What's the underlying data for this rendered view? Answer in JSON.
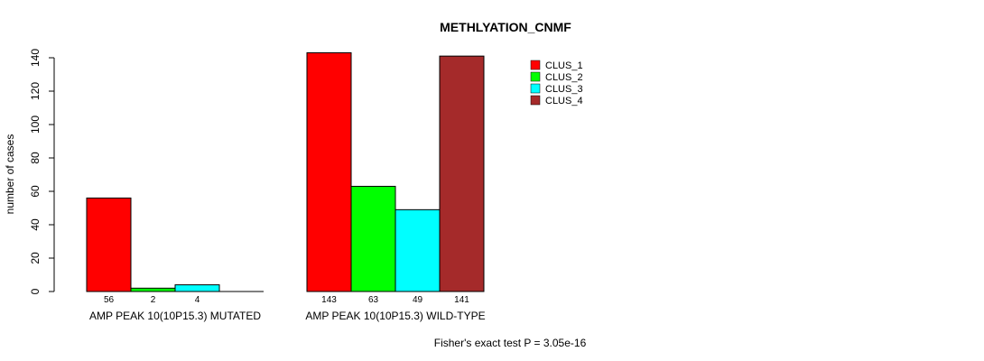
{
  "chart_data": {
    "type": "bar",
    "title": "METHLYATION_CNMF",
    "ylabel": "number of cases",
    "xlabel": "",
    "ylim": [
      0,
      140
    ],
    "yticks": [
      0,
      20,
      40,
      60,
      80,
      100,
      120,
      140
    ],
    "groups": [
      "AMP PEAK 10(10P15.3) MUTATED",
      "AMP PEAK 10(10P15.3) WILD-TYPE"
    ],
    "series": [
      {
        "name": "CLUS_1",
        "color": "#ff0000",
        "values": [
          56,
          143
        ]
      },
      {
        "name": "CLUS_2",
        "color": "#00ff00",
        "values": [
          2,
          63
        ]
      },
      {
        "name": "CLUS_3",
        "color": "#00ffff",
        "values": [
          4,
          49
        ]
      },
      {
        "name": "CLUS_4",
        "color": "#a52a2a",
        "values": [
          0,
          141
        ]
      }
    ],
    "count_labels": [
      [
        "56",
        "2",
        "4",
        ""
      ],
      [
        "143",
        "63",
        "49",
        "141"
      ]
    ],
    "legend_position": "top-right",
    "grid": false,
    "annotation": "Fisher's exact test P = 3.05e-16"
  }
}
